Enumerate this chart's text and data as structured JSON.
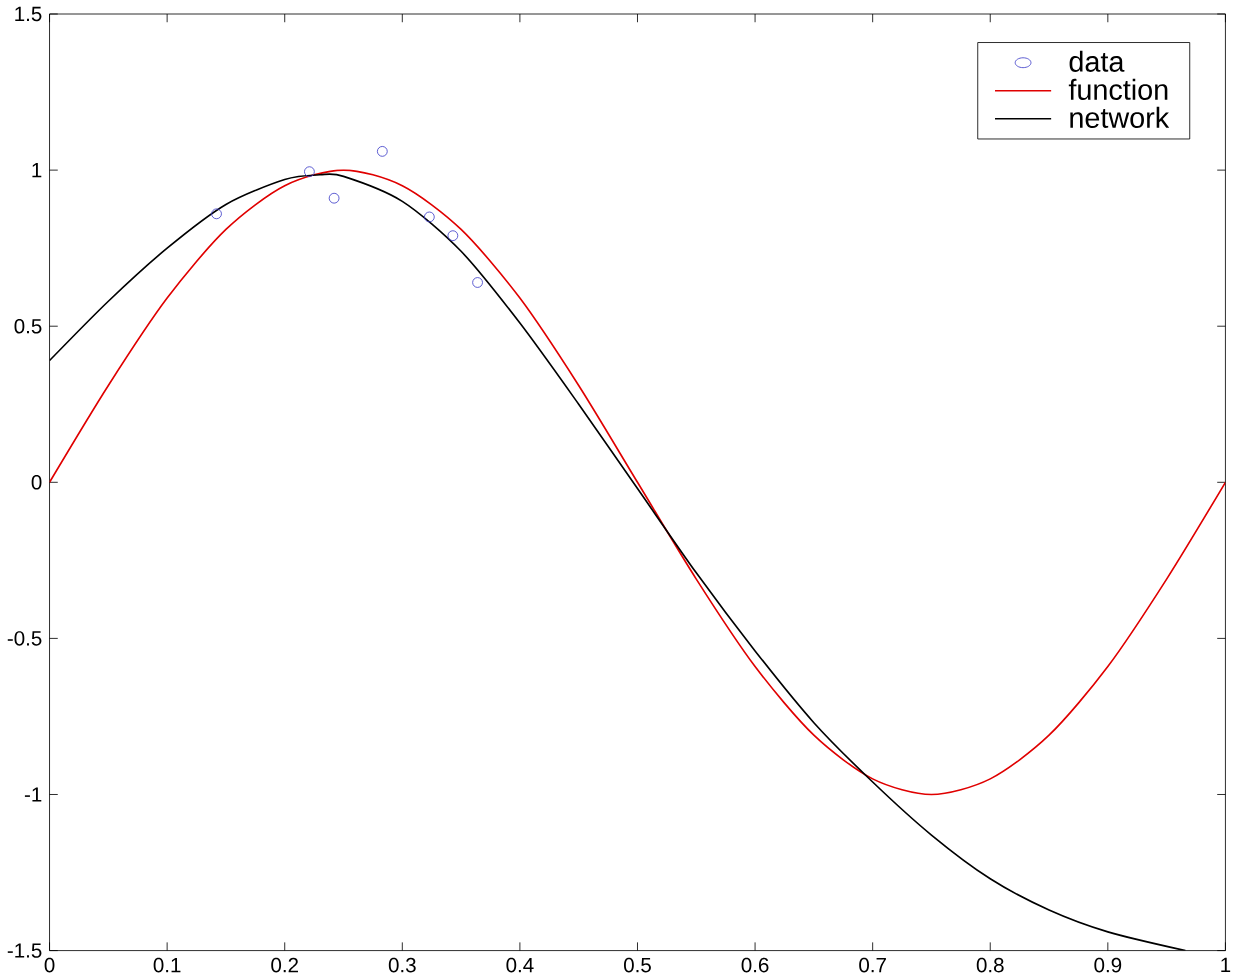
{
  "chart_data": {
    "type": "line",
    "xlim": [
      0,
      1
    ],
    "ylim": [
      -1.5,
      1.5
    ],
    "xticks": [
      0,
      0.1,
      0.2,
      0.3,
      0.4,
      0.5,
      0.6,
      0.7,
      0.8,
      0.9,
      1
    ],
    "yticks": [
      -1.5,
      -1,
      -0.5,
      0,
      0.5,
      1,
      1.5
    ],
    "grid": false,
    "legend": "top right",
    "series": [
      {
        "name": "data",
        "type": "scatter",
        "marker": "circle",
        "color": "#3c3cc8",
        "x": [
          0.142,
          0.221,
          0.242,
          0.283,
          0.323,
          0.343,
          0.364
        ],
        "values": [
          0.86,
          0.995,
          0.91,
          1.06,
          0.85,
          0.79,
          0.64
        ]
      },
      {
        "name": "function",
        "marker": "none",
        "color": "#e00000",
        "x": [
          0,
          0.05,
          0.1,
          0.15,
          0.2,
          0.25,
          0.3,
          0.35,
          0.4,
          0.45,
          0.5,
          0.55,
          0.6,
          0.65,
          0.7,
          0.75,
          0.8,
          0.85,
          0.9,
          0.95,
          1
        ],
        "values": [
          0,
          0.31,
          0.59,
          0.81,
          0.95,
          1,
          0.95,
          0.81,
          0.59,
          0.31,
          0,
          -0.31,
          -0.59,
          -0.81,
          -0.95,
          -1,
          -0.95,
          -0.81,
          -0.59,
          -0.31,
          0
        ]
      },
      {
        "name": "network",
        "marker": "none",
        "color": "#000000",
        "x": [
          0,
          0.05,
          0.1,
          0.15,
          0.2,
          0.23,
          0.25,
          0.3,
          0.35,
          0.4,
          0.45,
          0.5,
          0.55,
          0.6,
          0.65,
          0.7,
          0.75,
          0.8,
          0.85,
          0.9,
          0.966
        ],
        "values": [
          0.39,
          0.58,
          0.75,
          0.89,
          0.97,
          0.985,
          0.98,
          0.9,
          0.74,
          0.51,
          0.25,
          -0.02,
          -0.29,
          -0.54,
          -0.77,
          -0.96,
          -1.13,
          -1.27,
          -1.37,
          -1.44,
          -1.5
        ]
      }
    ]
  }
}
